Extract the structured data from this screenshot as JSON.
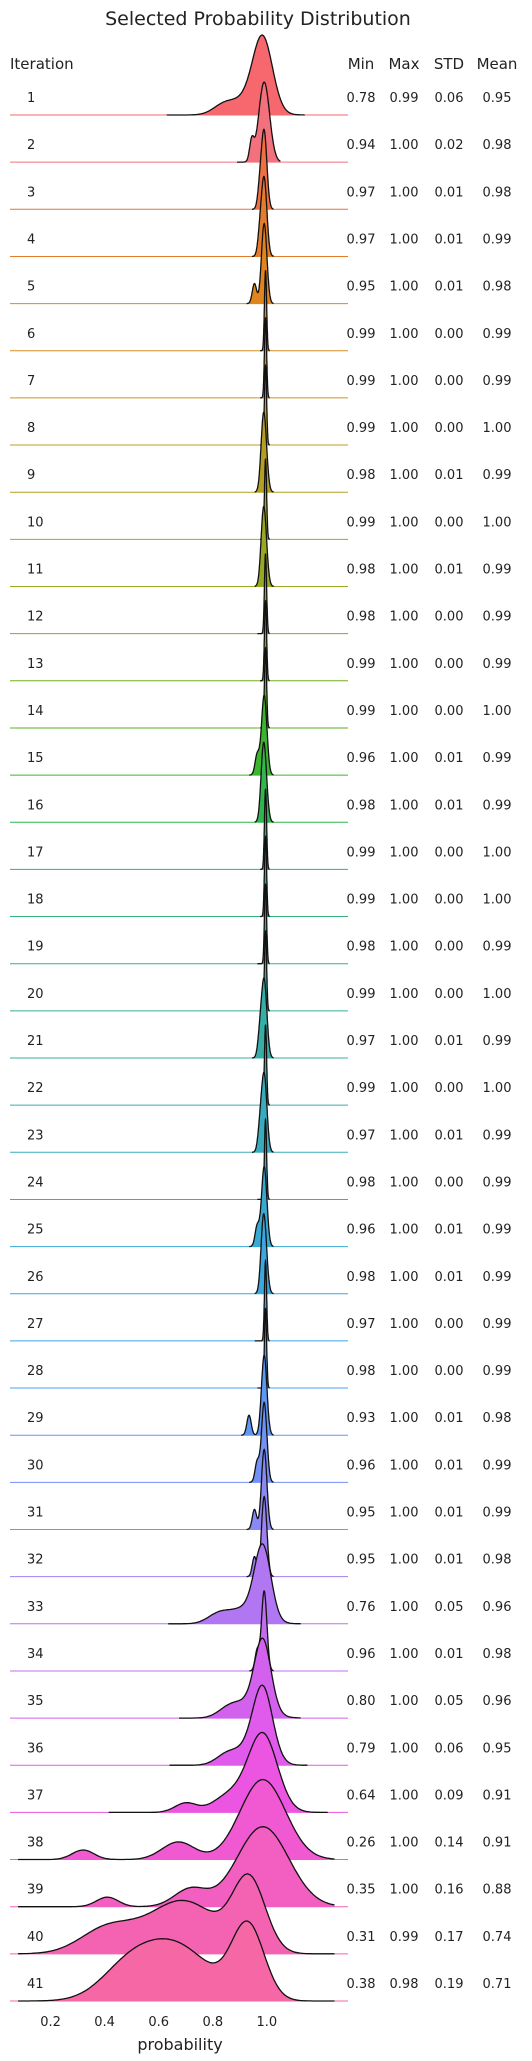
{
  "chart_data": {
    "type": "ridgeline",
    "title": "Selected Probability Distribution",
    "xlabel": "probability",
    "x_ticks": [
      "0.2",
      "0.4",
      "0.6",
      "0.8",
      "1.0"
    ],
    "x_tick_values": [
      0.2,
      0.4,
      0.6,
      0.8,
      1.0
    ],
    "xlim": [
      0.05,
      1.3
    ],
    "grid": false,
    "stat_headers": {
      "iteration": "Iteration",
      "min": "Min",
      "max": "Max",
      "std": "STD",
      "mean": "Mean"
    },
    "colors": [
      "#f7676e",
      "#f3707d",
      "#ef6f43",
      "#e47c2c",
      "#e0851e",
      "#d78e23",
      "#cc9722",
      "#c09c21",
      "#b3a022",
      "#a5a521",
      "#97a822",
      "#86ac22",
      "#74af21",
      "#5db220",
      "#3bb52e",
      "#30b54f",
      "#31b369",
      "#33b27e",
      "#34b08d",
      "#35af9a",
      "#36aea6",
      "#37adb1",
      "#38acbc",
      "#38abc7",
      "#39a9d2",
      "#3ba7de",
      "#3ea5ea",
      "#4ba0f3",
      "#5d98f5",
      "#7390f4",
      "#8a88f3",
      "#9f80f2",
      "#b176f1",
      "#c26cf0",
      "#d262ee",
      "#e05aeb",
      "#eb55e1",
      "#f059d1",
      "#f35ec1",
      "#f463b1",
      "#f567a5"
    ],
    "iterations": [
      {
        "label": "1",
        "min": "0.78",
        "max": "0.99",
        "std": "0.06",
        "mean": "0.95"
      },
      {
        "label": "2",
        "min": "0.94",
        "max": "1.00",
        "std": "0.02",
        "mean": "0.98"
      },
      {
        "label": "3",
        "min": "0.97",
        "max": "1.00",
        "std": "0.01",
        "mean": "0.98"
      },
      {
        "label": "4",
        "min": "0.97",
        "max": "1.00",
        "std": "0.01",
        "mean": "0.99"
      },
      {
        "label": "5",
        "min": "0.95",
        "max": "1.00",
        "std": "0.01",
        "mean": "0.98"
      },
      {
        "label": "6",
        "min": "0.99",
        "max": "1.00",
        "std": "0.00",
        "mean": "0.99"
      },
      {
        "label": "7",
        "min": "0.99",
        "max": "1.00",
        "std": "0.00",
        "mean": "0.99"
      },
      {
        "label": "8",
        "min": "0.99",
        "max": "1.00",
        "std": "0.00",
        "mean": "1.00"
      },
      {
        "label": "9",
        "min": "0.98",
        "max": "1.00",
        "std": "0.01",
        "mean": "0.99"
      },
      {
        "label": "10",
        "min": "0.99",
        "max": "1.00",
        "std": "0.00",
        "mean": "1.00"
      },
      {
        "label": "11",
        "min": "0.98",
        "max": "1.00",
        "std": "0.01",
        "mean": "0.99"
      },
      {
        "label": "12",
        "min": "0.98",
        "max": "1.00",
        "std": "0.00",
        "mean": "0.99"
      },
      {
        "label": "13",
        "min": "0.99",
        "max": "1.00",
        "std": "0.00",
        "mean": "0.99"
      },
      {
        "label": "14",
        "min": "0.99",
        "max": "1.00",
        "std": "0.00",
        "mean": "1.00"
      },
      {
        "label": "15",
        "min": "0.96",
        "max": "1.00",
        "std": "0.01",
        "mean": "0.99"
      },
      {
        "label": "16",
        "min": "0.98",
        "max": "1.00",
        "std": "0.01",
        "mean": "0.99"
      },
      {
        "label": "17",
        "min": "0.99",
        "max": "1.00",
        "std": "0.00",
        "mean": "1.00"
      },
      {
        "label": "18",
        "min": "0.99",
        "max": "1.00",
        "std": "0.00",
        "mean": "1.00"
      },
      {
        "label": "19",
        "min": "0.98",
        "max": "1.00",
        "std": "0.00",
        "mean": "0.99"
      },
      {
        "label": "20",
        "min": "0.99",
        "max": "1.00",
        "std": "0.00",
        "mean": "1.00"
      },
      {
        "label": "21",
        "min": "0.97",
        "max": "1.00",
        "std": "0.01",
        "mean": "0.99"
      },
      {
        "label": "22",
        "min": "0.99",
        "max": "1.00",
        "std": "0.00",
        "mean": "1.00"
      },
      {
        "label": "23",
        "min": "0.97",
        "max": "1.00",
        "std": "0.01",
        "mean": "0.99"
      },
      {
        "label": "24",
        "min": "0.98",
        "max": "1.00",
        "std": "0.00",
        "mean": "0.99"
      },
      {
        "label": "25",
        "min": "0.96",
        "max": "1.00",
        "std": "0.01",
        "mean": "0.99"
      },
      {
        "label": "26",
        "min": "0.98",
        "max": "1.00",
        "std": "0.01",
        "mean": "0.99"
      },
      {
        "label": "27",
        "min": "0.97",
        "max": "1.00",
        "std": "0.00",
        "mean": "0.99"
      },
      {
        "label": "28",
        "min": "0.98",
        "max": "1.00",
        "std": "0.00",
        "mean": "0.99"
      },
      {
        "label": "29",
        "min": "0.93",
        "max": "1.00",
        "std": "0.01",
        "mean": "0.98"
      },
      {
        "label": "30",
        "min": "0.96",
        "max": "1.00",
        "std": "0.01",
        "mean": "0.99"
      },
      {
        "label": "31",
        "min": "0.95",
        "max": "1.00",
        "std": "0.01",
        "mean": "0.99"
      },
      {
        "label": "32",
        "min": "0.95",
        "max": "1.00",
        "std": "0.01",
        "mean": "0.98"
      },
      {
        "label": "33",
        "min": "0.76",
        "max": "1.00",
        "std": "0.05",
        "mean": "0.96"
      },
      {
        "label": "34",
        "min": "0.96",
        "max": "1.00",
        "std": "0.01",
        "mean": "0.98"
      },
      {
        "label": "35",
        "min": "0.80",
        "max": "1.00",
        "std": "0.05",
        "mean": "0.96"
      },
      {
        "label": "36",
        "min": "0.79",
        "max": "1.00",
        "std": "0.06",
        "mean": "0.95"
      },
      {
        "label": "37",
        "min": "0.64",
        "max": "1.00",
        "std": "0.09",
        "mean": "0.91"
      },
      {
        "label": "38",
        "min": "0.26",
        "max": "1.00",
        "std": "0.14",
        "mean": "0.91"
      },
      {
        "label": "39",
        "min": "0.35",
        "max": "1.00",
        "std": "0.16",
        "mean": "0.88"
      },
      {
        "label": "40",
        "min": "0.31",
        "max": "0.99",
        "std": "0.17",
        "mean": "0.74"
      },
      {
        "label": "41",
        "min": "0.38",
        "max": "0.98",
        "std": "0.19",
        "mean": "0.71"
      }
    ]
  }
}
